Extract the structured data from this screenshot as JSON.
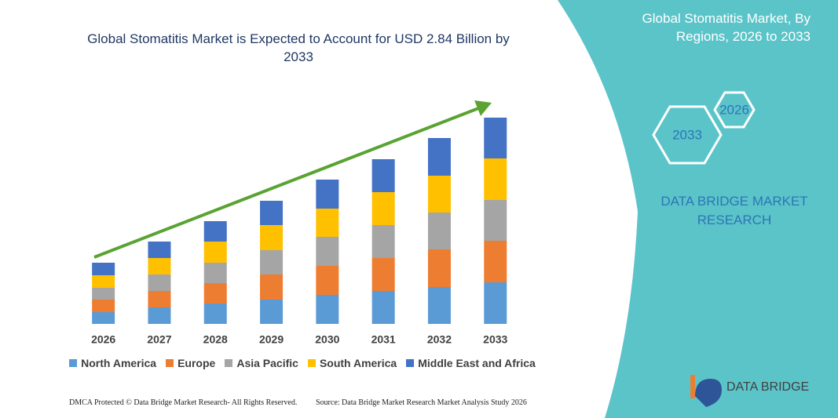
{
  "chart_data": {
    "type": "stacked-bar",
    "title": "Global Stomatitis Market is Expected to Account for USD 2.84 Billion by 2033",
    "categories": [
      "2026",
      "2027",
      "2028",
      "2029",
      "2030",
      "2031",
      "2032",
      "2033"
    ],
    "series": [
      {
        "name": "North America",
        "color": "#5b9bd5",
        "values": [
          15,
          21,
          26,
          31,
          37,
          42,
          47,
          53
        ]
      },
      {
        "name": "Europe",
        "color": "#ed7d31",
        "values": [
          16,
          21,
          26,
          32,
          37,
          42,
          48,
          53
        ]
      },
      {
        "name": "Asia Pacific",
        "color": "#a5a5a5",
        "values": [
          15,
          21,
          26,
          31,
          37,
          42,
          47,
          52
        ]
      },
      {
        "name": "South America",
        "color": "#ffc000",
        "values": [
          16,
          21,
          27,
          32,
          36,
          42,
          47,
          53
        ]
      },
      {
        "name": "Middle East and Africa",
        "color": "#4472c4",
        "values": [
          16,
          21,
          26,
          31,
          37,
          42,
          48,
          52
        ]
      }
    ]
  },
  "panel": {
    "title": "Global Stomatitis Market, By Regions, 2026 to 2033",
    "hexagons": [
      "2026",
      "2033"
    ],
    "brand": "DATA BRIDGE MARKET RESEARCH",
    "logo": "DATA BRIDGE"
  },
  "footer": {
    "left": "DMCA Protected © Data Bridge Market Research- All Rights Reserved.",
    "right": "Source: Data Bridge Market Research Market Analysis Study 2026"
  }
}
